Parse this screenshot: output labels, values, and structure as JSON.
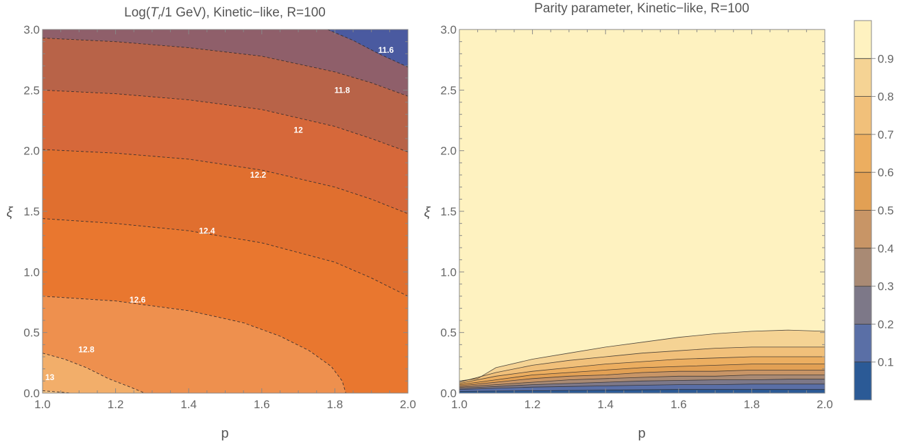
{
  "chart_data": [
    {
      "type": "contour",
      "title": {
        "prefix": "Log(",
        "T": "T",
        "sub": "r",
        "suffix": "/1 GeV), Kinetic−like, R=100"
      },
      "xlabel": "p",
      "ylabel": "ξ",
      "xlim": [
        1.0,
        2.0
      ],
      "ylim": [
        0.0,
        3.0
      ],
      "xticks": [
        "1.0",
        "1.2",
        "1.4",
        "1.6",
        "1.8",
        "2.0"
      ],
      "yticks": [
        "0.0",
        "0.5",
        "1.0",
        "1.5",
        "2.0",
        "2.5",
        "3.0"
      ],
      "contour_lines": [
        {
          "label": "13",
          "level": 13.0,
          "points": [
            [
              1.0,
              0.02
            ],
            [
              1.04,
              0.01
            ],
            [
              1.08,
              0.0
            ]
          ],
          "label_at": [
            1.02,
            0.13
          ]
        },
        {
          "label": "12.8",
          "level": 12.8,
          "points": [
            [
              1.0,
              0.33
            ],
            [
              1.06,
              0.28
            ],
            [
              1.12,
              0.21
            ],
            [
              1.18,
              0.12
            ],
            [
              1.24,
              0.05
            ],
            [
              1.28,
              0.0
            ]
          ],
          "label_at": [
            1.12,
            0.36
          ]
        },
        {
          "label": "12.6",
          "level": 12.6,
          "points": [
            [
              1.0,
              0.8
            ],
            [
              1.2,
              0.76
            ],
            [
              1.4,
              0.68
            ],
            [
              1.55,
              0.58
            ],
            [
              1.65,
              0.47
            ],
            [
              1.73,
              0.35
            ],
            [
              1.79,
              0.22
            ],
            [
              1.82,
              0.1
            ],
            [
              1.83,
              0.0
            ]
          ],
          "label_at": [
            1.26,
            0.77
          ]
        },
        {
          "label": "12.4",
          "level": 12.4,
          "points": [
            [
              1.0,
              1.44
            ],
            [
              1.2,
              1.4
            ],
            [
              1.4,
              1.34
            ],
            [
              1.6,
              1.24
            ],
            [
              1.8,
              1.08
            ],
            [
              1.9,
              0.95
            ],
            [
              2.0,
              0.8
            ]
          ],
          "label_at": [
            1.45,
            1.34
          ]
        },
        {
          "label": "12.2",
          "level": 12.2,
          "points": [
            [
              1.0,
              2.01
            ],
            [
              1.2,
              1.98
            ],
            [
              1.4,
              1.93
            ],
            [
              1.6,
              1.84
            ],
            [
              1.8,
              1.7
            ],
            [
              1.9,
              1.6
            ],
            [
              2.0,
              1.48
            ]
          ],
          "label_at": [
            1.59,
            1.8
          ]
        },
        {
          "label": "12",
          "level": 12.0,
          "points": [
            [
              1.0,
              2.5
            ],
            [
              1.2,
              2.47
            ],
            [
              1.4,
              2.42
            ],
            [
              1.6,
              2.34
            ],
            [
              1.8,
              2.2
            ],
            [
              1.9,
              2.1
            ],
            [
              2.0,
              1.99
            ]
          ],
          "label_at": [
            1.7,
            2.17
          ]
        },
        {
          "label": "11.8",
          "level": 11.8,
          "points": [
            [
              1.0,
              2.93
            ],
            [
              1.2,
              2.9
            ],
            [
              1.4,
              2.85
            ],
            [
              1.6,
              2.78
            ],
            [
              1.8,
              2.65
            ],
            [
              1.9,
              2.56
            ],
            [
              2.0,
              2.45
            ]
          ],
          "label_at": [
            1.82,
            2.5
          ]
        },
        {
          "label": "11.6",
          "level": 11.6,
          "points": [
            [
              1.78,
              3.0
            ],
            [
              1.85,
              2.91
            ],
            [
              1.92,
              2.8
            ],
            [
              2.0,
              2.69
            ]
          ],
          "label_at": [
            1.94,
            2.83
          ]
        }
      ],
      "colors": {
        "gt_13": "#f1c286",
        "13_12.8": "#f2ae6a",
        "12.8_12.6": "#ee904e",
        "12.6_12.4": "#e9772f",
        "12.4_12.2": "#e06f2f",
        "12.2_12": "#d6683a",
        "12_11.8": "#b86348",
        "11.8_11.6": "#8f5f6a",
        "11.6_11.4": "#6b5d82",
        "lt_11.6": "#4a5aa0"
      }
    },
    {
      "type": "contour",
      "title": "Parity parameter, Kinetic−like, R=100",
      "xlabel": "p",
      "ylabel": "ξ",
      "xlim": [
        1.0,
        2.0
      ],
      "ylim": [
        0.0,
        3.0
      ],
      "xticks": [
        "1.0",
        "1.2",
        "1.4",
        "1.6",
        "1.8",
        "2.0"
      ],
      "yticks": [
        "0.0",
        "0.5",
        "1.0",
        "1.5",
        "2.0",
        "2.5",
        "3.0"
      ],
      "colorbar": {
        "ticks": [
          "0.1",
          "0.2",
          "0.3",
          "0.4",
          "0.5",
          "0.6",
          "0.7",
          "0.8",
          "0.9"
        ],
        "levels": [
          0.0,
          0.1,
          0.2,
          0.3,
          0.4,
          0.5,
          0.6,
          0.7,
          0.8,
          0.9,
          1.0
        ],
        "colors": [
          "#2b5a96",
          "#5a6fa6",
          "#7d7888",
          "#a98a74",
          "#c89566",
          "#e2a054",
          "#ecae60",
          "#f1c07a",
          "#f5d394",
          "#fef2c0"
        ]
      },
      "contour_lines": [
        {
          "level": 0.9,
          "points": [
            [
              1.0,
              0.1
            ],
            [
              1.05,
              0.12
            ],
            [
              1.1,
              0.21
            ],
            [
              1.2,
              0.28
            ],
            [
              1.3,
              0.33
            ],
            [
              1.4,
              0.38
            ],
            [
              1.5,
              0.42
            ],
            [
              1.6,
              0.46
            ],
            [
              1.7,
              0.49
            ],
            [
              1.8,
              0.51
            ],
            [
              1.9,
              0.52
            ],
            [
              2.0,
              0.51
            ]
          ]
        },
        {
          "level": 0.8,
          "points": [
            [
              1.0,
              0.09
            ],
            [
              1.1,
              0.17
            ],
            [
              1.2,
              0.23
            ],
            [
              1.3,
              0.27
            ],
            [
              1.4,
              0.3
            ],
            [
              1.5,
              0.33
            ],
            [
              1.6,
              0.35
            ],
            [
              1.7,
              0.37
            ],
            [
              1.8,
              0.38
            ],
            [
              1.9,
              0.38
            ],
            [
              2.0,
              0.38
            ]
          ]
        },
        {
          "level": 0.7,
          "points": [
            [
              1.0,
              0.08
            ],
            [
              1.1,
              0.14
            ],
            [
              1.2,
              0.18
            ],
            [
              1.3,
              0.21
            ],
            [
              1.4,
              0.24
            ],
            [
              1.5,
              0.26
            ],
            [
              1.6,
              0.28
            ],
            [
              1.7,
              0.29
            ],
            [
              1.8,
              0.3
            ],
            [
              1.9,
              0.3
            ],
            [
              2.0,
              0.3
            ]
          ]
        },
        {
          "level": 0.6,
          "points": [
            [
              1.0,
              0.07
            ],
            [
              1.1,
              0.11
            ],
            [
              1.2,
              0.15
            ],
            [
              1.3,
              0.17
            ],
            [
              1.4,
              0.19
            ],
            [
              1.5,
              0.21
            ],
            [
              1.6,
              0.22
            ],
            [
              1.7,
              0.23
            ],
            [
              1.8,
              0.24
            ],
            [
              1.9,
              0.24
            ],
            [
              2.0,
              0.24
            ]
          ]
        },
        {
          "level": 0.5,
          "points": [
            [
              1.0,
              0.06
            ],
            [
              1.1,
              0.09
            ],
            [
              1.2,
              0.12
            ],
            [
              1.3,
              0.14
            ],
            [
              1.4,
              0.15
            ],
            [
              1.5,
              0.17
            ],
            [
              1.6,
              0.18
            ],
            [
              1.7,
              0.18
            ],
            [
              1.8,
              0.19
            ],
            [
              1.9,
              0.19
            ],
            [
              2.0,
              0.19
            ]
          ]
        },
        {
          "level": 0.4,
          "points": [
            [
              1.0,
              0.05
            ],
            [
              1.1,
              0.07
            ],
            [
              1.2,
              0.09
            ],
            [
              1.3,
              0.11
            ],
            [
              1.4,
              0.12
            ],
            [
              1.5,
              0.13
            ],
            [
              1.6,
              0.14
            ],
            [
              1.7,
              0.14
            ],
            [
              1.8,
              0.15
            ],
            [
              1.9,
              0.15
            ],
            [
              2.0,
              0.15
            ]
          ]
        },
        {
          "level": 0.3,
          "points": [
            [
              1.0,
              0.04
            ],
            [
              1.1,
              0.055
            ],
            [
              1.2,
              0.07
            ],
            [
              1.3,
              0.08
            ],
            [
              1.4,
              0.09
            ],
            [
              1.5,
              0.1
            ],
            [
              1.6,
              0.105
            ],
            [
              1.7,
              0.11
            ],
            [
              1.8,
              0.11
            ],
            [
              1.9,
              0.115
            ],
            [
              2.0,
              0.115
            ]
          ]
        },
        {
          "level": 0.2,
          "points": [
            [
              1.0,
              0.03
            ],
            [
              1.1,
              0.04
            ],
            [
              1.2,
              0.05
            ],
            [
              1.3,
              0.055
            ],
            [
              1.4,
              0.06
            ],
            [
              1.5,
              0.065
            ],
            [
              1.6,
              0.07
            ],
            [
              1.7,
              0.07
            ],
            [
              1.8,
              0.075
            ],
            [
              1.9,
              0.075
            ],
            [
              2.0,
              0.075
            ]
          ]
        },
        {
          "level": 0.1,
          "points": [
            [
              1.0,
              0.015
            ],
            [
              1.2,
              0.02
            ],
            [
              1.4,
              0.025
            ],
            [
              1.6,
              0.03
            ],
            [
              1.8,
              0.03
            ],
            [
              2.0,
              0.03
            ]
          ]
        }
      ]
    }
  ]
}
